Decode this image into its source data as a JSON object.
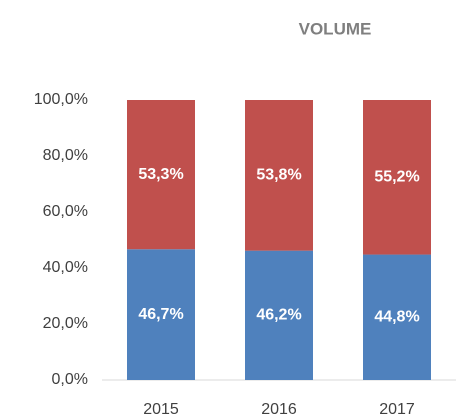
{
  "chart_data": {
    "type": "stacked_bar",
    "title": "VOLUME",
    "categories": [
      "2015",
      "2016",
      "2017"
    ],
    "series": [
      {
        "color": "#4f81bd",
        "values": [
          46.7,
          46.2,
          44.8
        ],
        "value_labels": [
          "46,7%",
          "46,2%",
          "44,8%"
        ]
      },
      {
        "color": "#c0504d",
        "values": [
          53.3,
          53.8,
          55.2
        ],
        "value_labels": [
          "53,3%",
          "53,8%",
          "55,2%"
        ]
      }
    ],
    "ylim": [
      0,
      100
    ],
    "yticks": [
      {
        "value": 0,
        "label": "0,0%"
      },
      {
        "value": 20,
        "label": "20,0%"
      },
      {
        "value": 40,
        "label": "40,0%"
      },
      {
        "value": 60,
        "label": "60,0%"
      },
      {
        "value": 80,
        "label": "80,0%"
      },
      {
        "value": 100,
        "label": "100,0%"
      }
    ]
  }
}
